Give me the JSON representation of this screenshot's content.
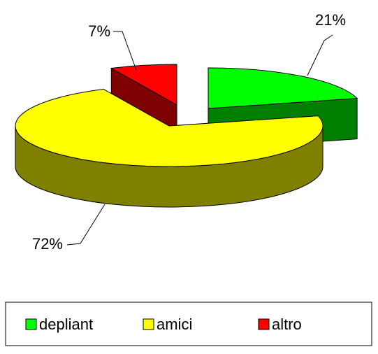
{
  "chart_data": {
    "type": "pie3d",
    "categories": [
      "depliant",
      "amici",
      "altro"
    ],
    "values": [
      21,
      72,
      7
    ],
    "value_labels": [
      "21%",
      "72%",
      "7%"
    ],
    "colors": [
      "#00ff00",
      "#ffff00",
      "#ff0000"
    ],
    "legend": "bottom"
  }
}
